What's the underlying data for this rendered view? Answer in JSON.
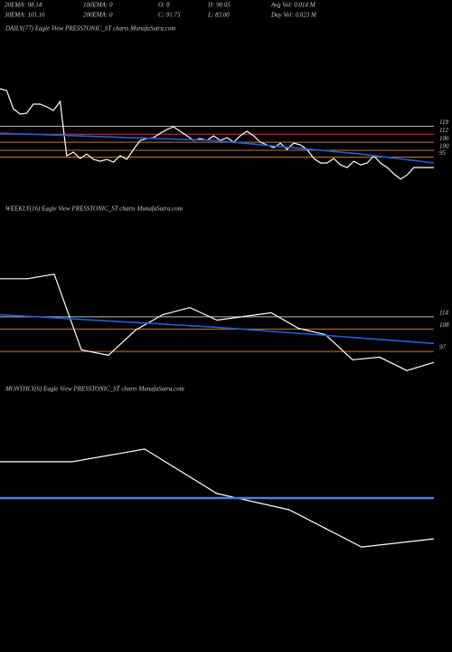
{
  "header": {
    "row1": [
      "20EMA: 98.14",
      "100EMA: 0",
      "O: 8",
      "H: 90.05",
      "Avg Vol: 0.014  M"
    ],
    "row2": [
      "30EMA: 101.16",
      "200EMA: 0",
      "C: 91.75",
      "L: 83.00",
      "Day Vol: 0.023 M"
    ]
  },
  "chart_data": [
    {
      "type": "line",
      "title": "DAILY(77) Eagle  View  PRESSTONIC_ST charts MunafaSutra.com",
      "ylim": [
        67,
        185
      ],
      "xlim": [
        0,
        65
      ],
      "levels": [
        118,
        112,
        106,
        100,
        95
      ],
      "level_colors": [
        "#bbbbbb",
        "#e03030",
        "#c8742c",
        "#c8742c",
        "#c8742c"
      ],
      "series": [
        {
          "color": "#ffffff",
          "values": [
            145.9,
            144.5,
            131.0,
            127.0,
            127.7,
            134.4,
            134.4,
            132.4,
            129.7,
            136.4,
            96.0,
            98.7,
            94.0,
            97.3,
            93.3,
            91.9,
            93.3,
            91.3,
            96.0,
            93.3,
            100.7,
            107.4,
            108.8,
            109.5,
            112.8,
            115.5,
            117.6,
            114.2,
            110.8,
            107.4,
            108.8,
            107.4,
            110.8,
            107.4,
            109.5,
            106.1,
            110.8,
            114.2,
            110.8,
            106.1,
            104.1,
            102.0,
            105.4,
            100.7,
            105.4,
            104.1,
            100.7,
            94.0,
            90.6,
            90.6,
            94.0,
            89.2,
            87.2,
            91.9,
            89.2,
            90.6,
            96.0,
            90.6,
            87.2,
            82.5,
            78.5,
            81.8,
            87.2,
            87.2,
            87.2,
            87.2
          ]
        },
        {
          "color": "#1f5fd6",
          "x": [
            0,
            32,
            54,
            65
          ],
          "values": [
            112.8,
            107.4,
            97.3,
            90.6
          ]
        }
      ]
    },
    {
      "type": "line",
      "title": "WEEKLY(16) Eagle  View  PRESSTONIC_ST charts MunafaSutra.com",
      "ylim": [
        85,
        163
      ],
      "xlim": [
        0,
        16
      ],
      "levels": [
        114,
        108,
        97
      ],
      "level_colors": [
        "#bbbbbb",
        "#c8742c",
        "#c8742c"
      ],
      "series": [
        {
          "color": "#ffffff",
          "values": [
            132.8,
            132.8,
            135.0,
            97.8,
            95.1,
            107.5,
            115.1,
            118.6,
            112.4,
            114.2,
            116.0,
            108.4,
            105.3,
            92.9,
            94.2,
            87.6,
            91.6
          ]
        },
        {
          "color": "#1f5fd6",
          "x": [
            0,
            8,
            16
          ],
          "values": [
            115.1,
            108.9,
            100.9
          ]
        }
      ]
    },
    {
      "type": "line",
      "title": "MONTHLY(6) Eagle  View  PRESSTONIC_ST charts MunafaSutra.com",
      "ylim": [
        0,
        100
      ],
      "xlim": [
        0,
        6
      ],
      "levels": [],
      "level_colors": [],
      "series": [
        {
          "color": "#ffffff",
          "values": [
            73.1,
            73.1,
            78.5,
            59.6,
            52.7,
            36.9,
            40.4
          ]
        },
        {
          "color": "#4a7fe0",
          "x": [
            0,
            6
          ],
          "values": [
            57.7,
            57.7
          ]
        }
      ]
    }
  ]
}
